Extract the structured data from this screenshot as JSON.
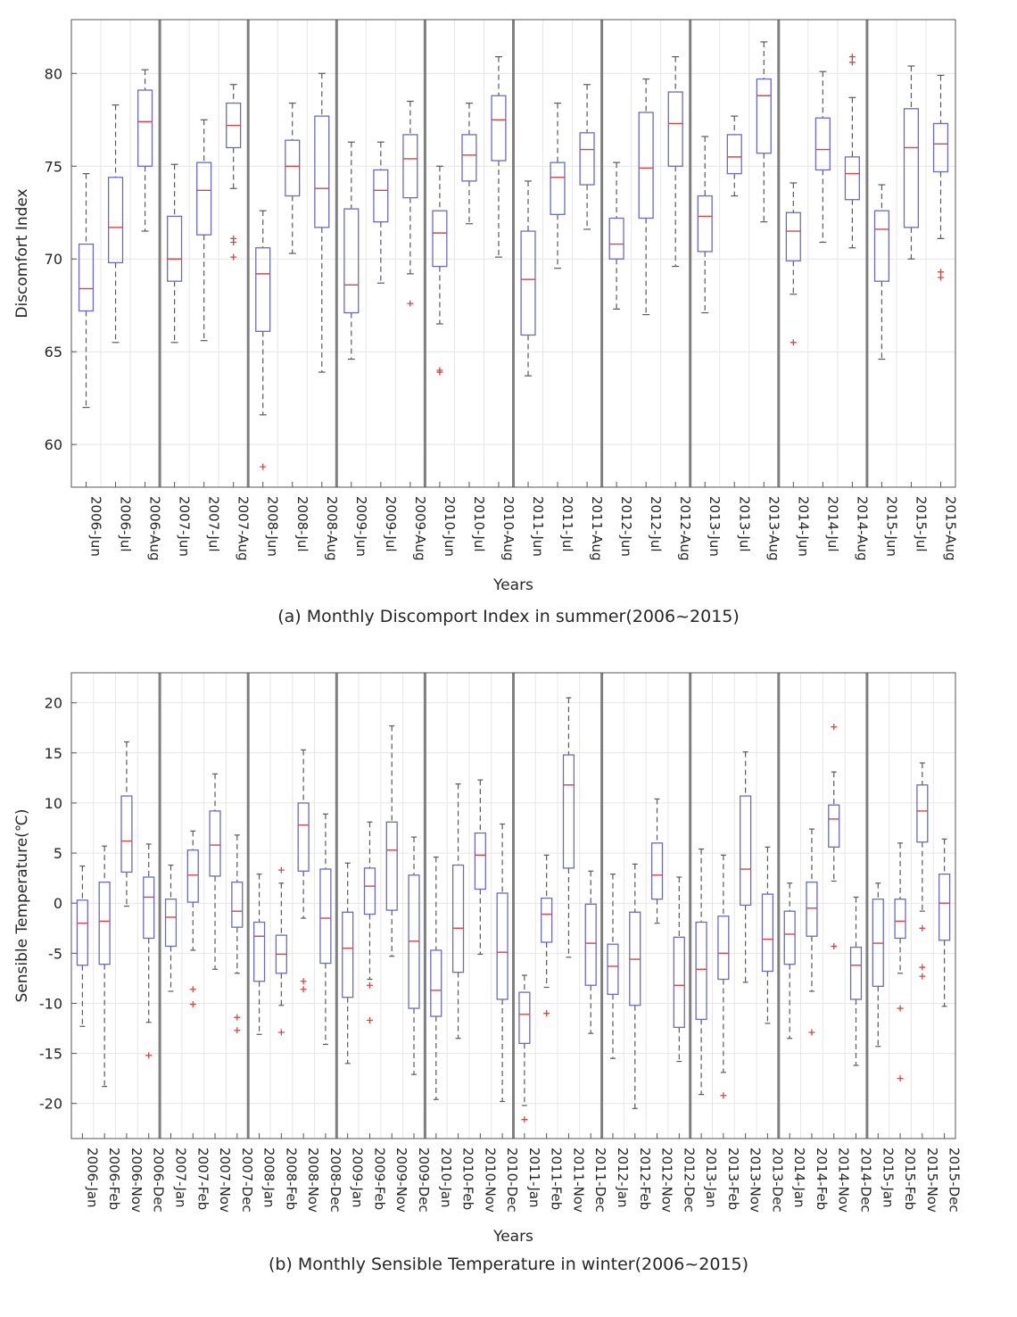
{
  "chart_data": [
    {
      "type": "box",
      "caption": "(a) Monthly Discomport Index in summer(2006~2015)",
      "xlabel": "Years",
      "ylabel": "Discomfort Index",
      "ylim": [
        57.7,
        82.9
      ],
      "yticks": [
        60,
        65,
        70,
        75,
        80
      ],
      "grid": true,
      "categories": [
        "2006-Jun",
        "2006-Jul",
        "2006-Aug",
        "2007-Jun",
        "2007-Jul",
        "2007-Aug",
        "2008-Jun",
        "2008-Jul",
        "2008-Aug",
        "2009-Jun",
        "2009-Jul",
        "2009-Aug",
        "2010-Jun",
        "2010-Jul",
        "2010-Aug",
        "2011-Jun",
        "2011-Jul",
        "2011-Aug",
        "2012-Jun",
        "2012-Jul",
        "2012-Aug",
        "2013-Jun",
        "2013-Jul",
        "2013-Aug",
        "2014-Jun",
        "2014-Jul",
        "2014-Aug",
        "2015-Jun",
        "2015-Jul",
        "2015-Aug"
      ],
      "boxes": [
        {
          "whislo": 62.0,
          "q1": 67.2,
          "med": 68.4,
          "q3": 70.8,
          "whishi": 74.6,
          "fliers": []
        },
        {
          "whislo": 65.5,
          "q1": 69.8,
          "med": 71.7,
          "q3": 74.4,
          "whishi": 78.3,
          "fliers": []
        },
        {
          "whislo": 71.5,
          "q1": 75.0,
          "med": 77.4,
          "q3": 79.1,
          "whishi": 80.2,
          "fliers": []
        },
        {
          "whislo": 65.5,
          "q1": 68.8,
          "med": 70.0,
          "q3": 72.3,
          "whishi": 75.1,
          "fliers": []
        },
        {
          "whislo": 65.6,
          "q1": 71.3,
          "med": 73.7,
          "q3": 75.2,
          "whishi": 77.5,
          "fliers": []
        },
        {
          "whislo": 73.8,
          "q1": 76.0,
          "med": 77.2,
          "q3": 78.4,
          "whishi": 79.4,
          "fliers": [
            71.1,
            70.9,
            70.1
          ]
        },
        {
          "whislo": 61.6,
          "q1": 66.1,
          "med": 69.2,
          "q3": 70.6,
          "whishi": 72.6,
          "fliers": [
            58.8
          ]
        },
        {
          "whislo": 70.3,
          "q1": 73.4,
          "med": 75.0,
          "q3": 76.4,
          "whishi": 78.4,
          "fliers": []
        },
        {
          "whislo": 63.9,
          "q1": 71.7,
          "med": 73.8,
          "q3": 77.7,
          "whishi": 80.0,
          "fliers": []
        },
        {
          "whislo": 64.6,
          "q1": 67.1,
          "med": 68.6,
          "q3": 72.7,
          "whishi": 76.3,
          "fliers": []
        },
        {
          "whislo": 68.7,
          "q1": 72.0,
          "med": 73.7,
          "q3": 74.8,
          "whishi": 76.3,
          "fliers": []
        },
        {
          "whislo": 69.2,
          "q1": 73.3,
          "med": 75.4,
          "q3": 76.7,
          "whishi": 78.5,
          "fliers": [
            67.6
          ]
        },
        {
          "whislo": 66.5,
          "q1": 69.6,
          "med": 71.4,
          "q3": 72.6,
          "whishi": 75.0,
          "fliers": [
            64.0,
            63.9
          ]
        },
        {
          "whislo": 71.9,
          "q1": 74.2,
          "med": 75.6,
          "q3": 76.7,
          "whishi": 78.4,
          "fliers": []
        },
        {
          "whislo": 70.1,
          "q1": 75.3,
          "med": 77.5,
          "q3": 78.8,
          "whishi": 80.9,
          "fliers": []
        },
        {
          "whislo": 63.7,
          "q1": 65.9,
          "med": 68.9,
          "q3": 71.5,
          "whishi": 74.2,
          "fliers": []
        },
        {
          "whislo": 69.5,
          "q1": 72.4,
          "med": 74.4,
          "q3": 75.2,
          "whishi": 78.4,
          "fliers": []
        },
        {
          "whislo": 71.6,
          "q1": 74.0,
          "med": 75.9,
          "q3": 76.8,
          "whishi": 79.4,
          "fliers": []
        },
        {
          "whislo": 67.3,
          "q1": 70.0,
          "med": 70.8,
          "q3": 72.2,
          "whishi": 75.2,
          "fliers": []
        },
        {
          "whislo": 67.0,
          "q1": 72.2,
          "med": 74.9,
          "q3": 77.9,
          "whishi": 79.7,
          "fliers": []
        },
        {
          "whislo": 69.6,
          "q1": 75.0,
          "med": 77.3,
          "q3": 79.0,
          "whishi": 80.9,
          "fliers": []
        },
        {
          "whislo": 67.1,
          "q1": 70.4,
          "med": 72.3,
          "q3": 73.4,
          "whishi": 76.6,
          "fliers": []
        },
        {
          "whislo": 73.4,
          "q1": 74.6,
          "med": 75.5,
          "q3": 76.7,
          "whishi": 77.7,
          "fliers": []
        },
        {
          "whislo": 72.0,
          "q1": 75.7,
          "med": 78.8,
          "q3": 79.7,
          "whishi": 81.7,
          "fliers": []
        },
        {
          "whislo": 68.1,
          "q1": 69.9,
          "med": 71.5,
          "q3": 72.5,
          "whishi": 74.1,
          "fliers": [
            65.5
          ]
        },
        {
          "whislo": 70.9,
          "q1": 74.8,
          "med": 75.9,
          "q3": 77.6,
          "whishi": 80.1,
          "fliers": []
        },
        {
          "whislo": 70.6,
          "q1": 73.2,
          "med": 74.6,
          "q3": 75.5,
          "whishi": 78.7,
          "fliers": [
            80.9,
            80.6
          ]
        },
        {
          "whislo": 64.6,
          "q1": 68.8,
          "med": 71.6,
          "q3": 72.6,
          "whishi": 74.0,
          "fliers": []
        },
        {
          "whislo": 70.0,
          "q1": 71.7,
          "med": 76.0,
          "q3": 78.1,
          "whishi": 80.4,
          "fliers": []
        },
        {
          "whislo": 71.1,
          "q1": 74.7,
          "med": 76.2,
          "q3": 77.3,
          "whishi": 79.9,
          "fliers": [
            69.3,
            69.0
          ]
        }
      ]
    },
    {
      "type": "box",
      "caption": "(b) Monthly Sensible Temperature in winter(2006~2015)",
      "xlabel": "Years",
      "ylabel": "Sensible Temperature(℃)",
      "ylim": [
        -23.5,
        23.0
      ],
      "yticks": [
        -20,
        -15,
        -10,
        -5,
        0,
        5,
        10,
        15,
        20
      ],
      "grid": true,
      "categories": [
        "2006-Jan",
        "2006-Feb",
        "2006-Nov",
        "2006-Dec",
        "2007-Jan",
        "2007-Feb",
        "2007-Nov",
        "2007-Dec",
        "2008-Jan",
        "2008-Feb",
        "2008-Nov",
        "2008-Dec",
        "2009-Jan",
        "2009-Feb",
        "2009-Nov",
        "2009-Dec",
        "2010-Jan",
        "2010-Feb",
        "2010-Nov",
        "2010-Dec",
        "2011-Jan",
        "2011-Feb",
        "2011-Nov",
        "2011-Dec",
        "2012-Jan",
        "2012-Feb",
        "2012-Nov",
        "2012-Dec",
        "2013-Jan",
        "2013-Feb",
        "2013-Nov",
        "2013-Dec",
        "2014-Jan",
        "2014-Feb",
        "2014-Nov",
        "2014-Dec",
        "2015-Jan",
        "2015-Feb",
        "2015-Nov",
        "2015-Dec"
      ],
      "boxes": [
        {
          "whislo": -12.3,
          "q1": -6.2,
          "med": -2.0,
          "q3": 0.3,
          "whishi": 3.7,
          "fliers": []
        },
        {
          "whislo": -18.3,
          "q1": -6.1,
          "med": -1.8,
          "q3": 2.1,
          "whishi": 5.7,
          "fliers": []
        },
        {
          "whislo": -0.3,
          "q1": 3.1,
          "med": 6.2,
          "q3": 10.7,
          "whishi": 16.1,
          "fliers": []
        },
        {
          "whislo": -11.9,
          "q1": -3.5,
          "med": 0.6,
          "q3": 2.6,
          "whishi": 5.9,
          "fliers": [
            -15.2
          ]
        },
        {
          "whislo": -8.8,
          "q1": -4.3,
          "med": -1.4,
          "q3": 0.4,
          "whishi": 3.8,
          "fliers": []
        },
        {
          "whislo": -4.7,
          "q1": 0.1,
          "med": 2.8,
          "q3": 5.3,
          "whishi": 7.2,
          "fliers": [
            -8.6,
            -10.1
          ]
        },
        {
          "whislo": -6.6,
          "q1": 2.7,
          "med": 5.8,
          "q3": 9.2,
          "whishi": 12.9,
          "fliers": []
        },
        {
          "whislo": -7.0,
          "q1": -2.4,
          "med": -0.8,
          "q3": 2.1,
          "whishi": 6.8,
          "fliers": [
            -11.4,
            -12.7
          ]
        },
        {
          "whislo": -13.1,
          "q1": -7.8,
          "med": -3.3,
          "q3": -1.9,
          "whishi": 2.9,
          "fliers": []
        },
        {
          "whislo": -10.2,
          "q1": -7.0,
          "med": -5.1,
          "q3": -3.2,
          "whishi": 2.0,
          "fliers": [
            3.3,
            -12.9
          ]
        },
        {
          "whislo": -1.5,
          "q1": 3.2,
          "med": 7.8,
          "q3": 10.0,
          "whishi": 15.3,
          "fliers": [
            -7.8,
            -8.6
          ]
        },
        {
          "whislo": -14.1,
          "q1": -6.0,
          "med": -1.5,
          "q3": 3.4,
          "whishi": 8.9,
          "fliers": []
        },
        {
          "whislo": -16.0,
          "q1": -9.4,
          "med": -4.5,
          "q3": -0.9,
          "whishi": 4.0,
          "fliers": []
        },
        {
          "whislo": -7.6,
          "q1": -1.1,
          "med": 1.7,
          "q3": 3.5,
          "whishi": 8.1,
          "fliers": [
            -8.2,
            -11.7
          ]
        },
        {
          "whislo": -5.3,
          "q1": -0.7,
          "med": 5.3,
          "q3": 8.1,
          "whishi": 17.7,
          "fliers": []
        },
        {
          "whislo": -17.1,
          "q1": -10.5,
          "med": -3.8,
          "q3": 2.8,
          "whishi": 6.6,
          "fliers": []
        },
        {
          "whislo": -19.6,
          "q1": -11.3,
          "med": -8.7,
          "q3": -4.7,
          "whishi": 4.6,
          "fliers": []
        },
        {
          "whislo": -13.5,
          "q1": -6.9,
          "med": -2.5,
          "q3": 3.8,
          "whishi": 11.9,
          "fliers": []
        },
        {
          "whislo": -5.1,
          "q1": 1.4,
          "med": 4.8,
          "q3": 7.0,
          "whishi": 12.3,
          "fliers": []
        },
        {
          "whislo": -19.8,
          "q1": -9.6,
          "med": -4.9,
          "q3": 1.0,
          "whishi": 7.9,
          "fliers": []
        },
        {
          "whislo": -20.2,
          "q1": -14.0,
          "med": -11.1,
          "q3": -8.9,
          "whishi": -7.2,
          "fliers": [
            -21.6
          ]
        },
        {
          "whislo": -8.4,
          "q1": -3.9,
          "med": -1.1,
          "q3": 0.5,
          "whishi": 4.8,
          "fliers": [
            -11.0
          ]
        },
        {
          "whislo": -5.4,
          "q1": 3.5,
          "med": 11.8,
          "q3": 14.8,
          "whishi": 20.5,
          "fliers": []
        },
        {
          "whislo": -13.0,
          "q1": -8.2,
          "med": -4.0,
          "q3": -0.1,
          "whishi": 3.2,
          "fliers": []
        },
        {
          "whislo": -15.5,
          "q1": -9.1,
          "med": -6.3,
          "q3": -4.1,
          "whishi": 2.9,
          "fliers": []
        },
        {
          "whislo": -20.5,
          "q1": -10.2,
          "med": -5.6,
          "q3": -0.9,
          "whishi": 3.9,
          "fliers": []
        },
        {
          "whislo": -2.0,
          "q1": 0.4,
          "med": 2.8,
          "q3": 6.0,
          "whishi": 10.4,
          "fliers": []
        },
        {
          "whislo": -15.8,
          "q1": -12.4,
          "med": -8.2,
          "q3": -3.4,
          "whishi": 2.6,
          "fliers": []
        },
        {
          "whislo": -19.1,
          "q1": -11.6,
          "med": -6.6,
          "q3": -1.9,
          "whishi": 5.4,
          "fliers": []
        },
        {
          "whislo": -16.9,
          "q1": -7.6,
          "med": -5.0,
          "q3": -1.3,
          "whishi": 4.8,
          "fliers": [
            -19.2
          ]
        },
        {
          "whislo": -7.9,
          "q1": -0.2,
          "med": 3.4,
          "q3": 10.7,
          "whishi": 15.1,
          "fliers": []
        },
        {
          "whislo": -12.0,
          "q1": -6.8,
          "med": -3.6,
          "q3": 0.9,
          "whishi": 5.6,
          "fliers": []
        },
        {
          "whislo": -13.5,
          "q1": -6.1,
          "med": -3.1,
          "q3": -0.8,
          "whishi": 2.0,
          "fliers": []
        },
        {
          "whislo": -8.8,
          "q1": -3.3,
          "med": -0.5,
          "q3": 2.1,
          "whishi": 7.4,
          "fliers": [
            -12.9
          ]
        },
        {
          "whislo": 2.2,
          "q1": 5.6,
          "med": 8.4,
          "q3": 9.8,
          "whishi": 13.1,
          "fliers": [
            17.6,
            -4.3
          ]
        },
        {
          "whislo": -16.2,
          "q1": -9.6,
          "med": -6.2,
          "q3": -4.4,
          "whishi": 0.6,
          "fliers": []
        },
        {
          "whislo": -14.3,
          "q1": -8.3,
          "med": -4.0,
          "q3": 0.4,
          "whishi": 2.0,
          "fliers": []
        },
        {
          "whislo": -7.0,
          "q1": -3.5,
          "med": -1.8,
          "q3": 0.4,
          "whishi": 6.0,
          "fliers": [
            -10.5,
            -17.5
          ]
        },
        {
          "whislo": -0.8,
          "q1": 6.1,
          "med": 9.2,
          "q3": 11.8,
          "whishi": 14.0,
          "fliers": [
            -2.5,
            -6.4,
            -7.3
          ]
        },
        {
          "whislo": -10.3,
          "q1": -3.7,
          "med": 0.0,
          "q3": 2.9,
          "whishi": 6.4,
          "fliers": []
        }
      ]
    }
  ],
  "style": {
    "box_color": "#6b6bc0",
    "median_color": "#d04848",
    "whisker_color": "#5a5a5a",
    "outlier_color": "#d04848",
    "divider_color": "#7f7f7f",
    "grid_color": "#e6e6e6"
  }
}
